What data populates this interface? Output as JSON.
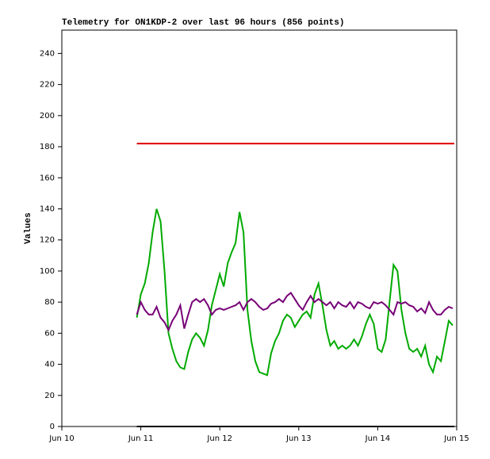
{
  "chart_data": {
    "type": "line",
    "title": "Telemetry for ON1KDP-2 over last 96 hours (856 points)",
    "y_label": "Values",
    "xlim": [
      10,
      15
    ],
    "xticks": [
      {
        "value": 10,
        "label": "Jun 10"
      },
      {
        "value": 11,
        "label": "Jun 11"
      },
      {
        "value": 12,
        "label": "Jun 12"
      },
      {
        "value": 13,
        "label": "Jun 13"
      },
      {
        "value": 14,
        "label": "Jun 14"
      },
      {
        "value": 15,
        "label": "Jun 15"
      }
    ],
    "ylim": [
      0,
      255
    ],
    "yticks": [
      0,
      20,
      40,
      60,
      80,
      100,
      120,
      140,
      160,
      180,
      200,
      220,
      240
    ],
    "series": [
      {
        "color": "#000000",
        "x": [
          10.95,
          14.97
        ],
        "values": [
          0,
          0
        ]
      },
      {
        "color": "#dd0000",
        "x": [
          10.95,
          14.97
        ],
        "values": [
          182,
          182
        ]
      },
      {
        "color": "#00aa00",
        "x": [
          10.95,
          11.0,
          11.05,
          11.1,
          11.15,
          11.2,
          11.25,
          11.3,
          11.35,
          11.4,
          11.45,
          11.5,
          11.55,
          11.6,
          11.65,
          11.7,
          11.75,
          11.8,
          11.85,
          11.9,
          11.95,
          12.0,
          12.05,
          12.1,
          12.15,
          12.2,
          12.25,
          12.3,
          12.35,
          12.4,
          12.45,
          12.5,
          12.55,
          12.6,
          12.65,
          12.7,
          12.75,
          12.8,
          12.85,
          12.9,
          12.95,
          13.0,
          13.05,
          13.1,
          13.15,
          13.2,
          13.25,
          13.3,
          13.35,
          13.4,
          13.45,
          13.5,
          13.55,
          13.6,
          13.65,
          13.7,
          13.75,
          13.8,
          13.85,
          13.9,
          13.95,
          14.0,
          14.05,
          14.1,
          14.15,
          14.2,
          14.25,
          14.3,
          14.35,
          14.4,
          14.45,
          14.5,
          14.55,
          14.6,
          14.65,
          14.7,
          14.75,
          14.8,
          14.85,
          14.9,
          14.95
        ],
        "values": [
          70,
          85,
          92,
          105,
          125,
          140,
          132,
          100,
          60,
          50,
          42,
          38,
          37,
          48,
          56,
          60,
          57,
          52,
          62,
          78,
          88,
          98,
          90,
          105,
          112,
          118,
          138,
          125,
          75,
          55,
          42,
          35,
          34,
          33,
          47,
          55,
          60,
          68,
          72,
          70,
          64,
          68,
          72,
          74,
          70,
          85,
          92,
          78,
          62,
          52,
          55,
          50,
          52,
          50,
          52,
          56,
          52,
          58,
          66,
          72,
          66,
          50,
          48,
          56,
          80,
          104,
          100,
          75,
          60,
          50,
          48,
          50,
          45,
          52,
          40,
          35,
          45,
          42,
          55,
          68,
          65
        ]
      },
      {
        "color": "#770077",
        "x": [
          10.95,
          11.0,
          11.05,
          11.1,
          11.15,
          11.2,
          11.25,
          11.3,
          11.35,
          11.4,
          11.45,
          11.5,
          11.55,
          11.6,
          11.65,
          11.7,
          11.75,
          11.8,
          11.85,
          11.9,
          11.95,
          12.0,
          12.05,
          12.1,
          12.15,
          12.2,
          12.25,
          12.3,
          12.35,
          12.4,
          12.45,
          12.5,
          12.55,
          12.6,
          12.65,
          12.7,
          12.75,
          12.8,
          12.85,
          12.9,
          12.95,
          13.0,
          13.05,
          13.1,
          13.15,
          13.2,
          13.25,
          13.3,
          13.35,
          13.4,
          13.45,
          13.5,
          13.55,
          13.6,
          13.65,
          13.7,
          13.75,
          13.8,
          13.85,
          13.9,
          13.95,
          14.0,
          14.05,
          14.1,
          14.15,
          14.2,
          14.25,
          14.3,
          14.35,
          14.4,
          14.45,
          14.5,
          14.55,
          14.6,
          14.65,
          14.7,
          14.75,
          14.8,
          14.85,
          14.9,
          14.95
        ],
        "values": [
          72,
          80,
          75,
          72,
          72,
          77,
          70,
          67,
          62,
          68,
          72,
          78,
          63,
          72,
          80,
          82,
          80,
          82,
          78,
          72,
          75,
          76,
          75,
          76,
          77,
          78,
          80,
          75,
          80,
          82,
          80,
          77,
          75,
          76,
          79,
          80,
          82,
          80,
          84,
          86,
          82,
          78,
          75,
          80,
          84,
          80,
          82,
          80,
          78,
          80,
          76,
          80,
          78,
          77,
          80,
          76,
          80,
          79,
          77,
          76,
          80,
          79,
          80,
          78,
          75,
          72,
          80,
          79,
          80,
          78,
          77,
          74,
          76,
          73,
          80,
          75,
          72,
          72,
          75,
          77,
          76
        ]
      }
    ]
  }
}
